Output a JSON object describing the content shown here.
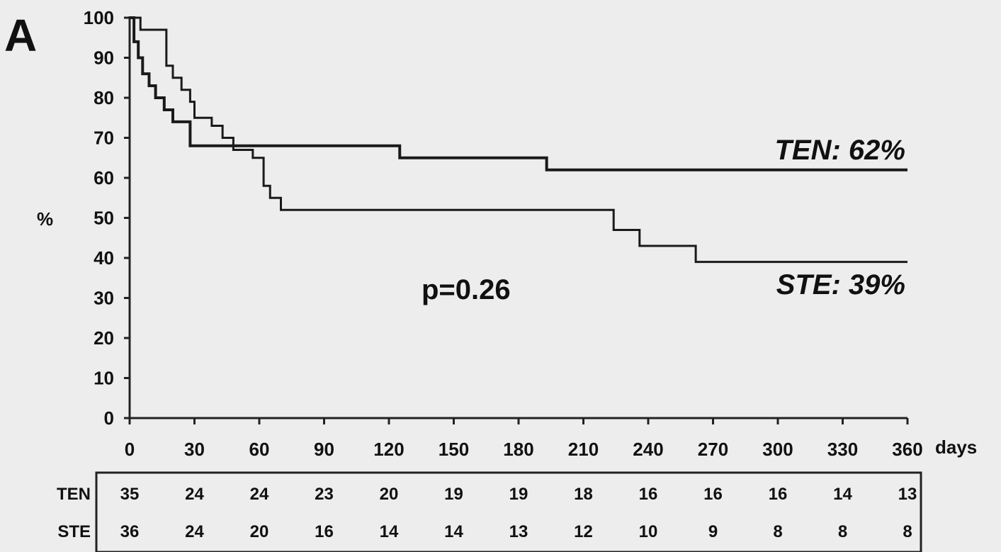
{
  "panel_label": "A",
  "chart_data": {
    "type": "line",
    "step": true,
    "ylabel": "%",
    "xunit": "days",
    "xlim": [
      0,
      360
    ],
    "ylim": [
      0,
      100
    ],
    "xticks": [
      0,
      30,
      60,
      90,
      120,
      150,
      180,
      210,
      240,
      270,
      300,
      330,
      360
    ],
    "yticks": [
      0,
      10,
      20,
      30,
      40,
      50,
      60,
      70,
      80,
      90,
      100
    ],
    "grid": false,
    "series": [
      {
        "name": "TEN",
        "x": [
          0,
          2,
          4,
          6,
          9,
          12,
          16,
          20,
          25,
          28,
          60,
          125,
          193,
          360
        ],
        "y": [
          100,
          94,
          90,
          86,
          83,
          80,
          77,
          74,
          74,
          68,
          68,
          65,
          62,
          62
        ]
      },
      {
        "name": "STE",
        "x": [
          0,
          5,
          17,
          20,
          24,
          28,
          30,
          38,
          43,
          48,
          57,
          62,
          65,
          70,
          124,
          224,
          236,
          262,
          360
        ],
        "y": [
          100,
          97,
          88,
          85,
          82,
          79,
          75,
          73,
          70,
          67,
          65,
          58,
          55,
          52,
          52,
          47,
          43,
          39,
          39
        ]
      }
    ],
    "annotations": [
      "TEN: 62%",
      "STE: 39%",
      "p=0.26"
    ],
    "risk_table": {
      "rows": [
        {
          "label": "TEN",
          "values": [
            35,
            24,
            24,
            23,
            20,
            19,
            19,
            18,
            16,
            16,
            16,
            14,
            13
          ]
        },
        {
          "label": "STE",
          "values": [
            36,
            24,
            20,
            16,
            14,
            14,
            13,
            12,
            10,
            9,
            8,
            8,
            8
          ]
        }
      ]
    }
  }
}
